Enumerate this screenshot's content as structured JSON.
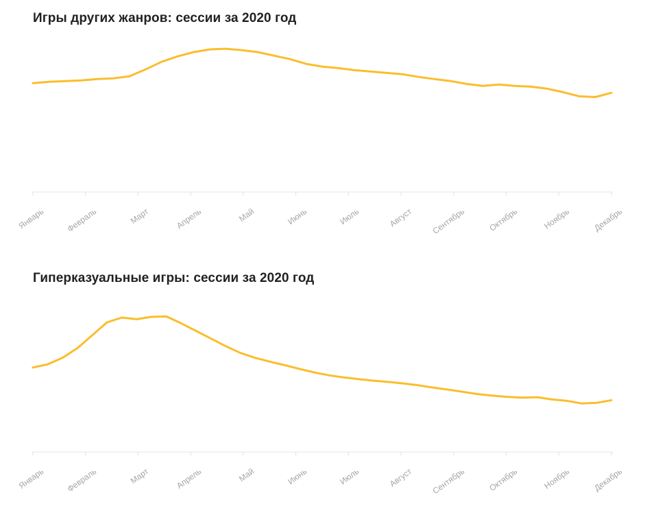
{
  "colors": {
    "line": "#FBBD2C",
    "axis": "#E6E6E6",
    "tick": "#E0E0E0",
    "labels": "#A6A6A6",
    "title": "#212121"
  },
  "chart_data": [
    {
      "type": "line",
      "title": "Игры других жанров: сессии за 2020 год",
      "categories": [
        "Январь",
        "Февраль",
        "Март",
        "Апрель",
        "Май",
        "Июнь",
        "Июль",
        "Август",
        "Сентябрь",
        "Октябрь",
        "Ноябрь",
        "Декабрь"
      ],
      "values": [
        71.5,
        72.4,
        72.9,
        73.3,
        74.2,
        74.7,
        76.0,
        80.5,
        85.5,
        89.1,
        91.9,
        93.7,
        94.1,
        93.2,
        91.9,
        89.6,
        87.3,
        84.2,
        82.4,
        81.4,
        80.1,
        79.2,
        78.3,
        77.4,
        75.6,
        74.2,
        72.9,
        71.0,
        69.7,
        70.6,
        69.7,
        69.2,
        67.9,
        65.6,
        62.9,
        62.4,
        65.2
      ],
      "xlabel": "",
      "ylabel": "",
      "ylim": [
        0,
        100
      ],
      "grid": false,
      "legend": "none"
    },
    {
      "type": "line",
      "title": "Гиперказуальные игры: сессии за 2020 год",
      "categories": [
        "Январь",
        "Февраль",
        "Март",
        "Апрель",
        "Май",
        "Июнь",
        "Июль",
        "Август",
        "Сентябрь",
        "Октябрь",
        "Ноябрь",
        "Декабрь"
      ],
      "values": [
        55.5,
        57.6,
        61.9,
        68.2,
        76.7,
        85.2,
        88.3,
        87.2,
        88.8,
        89.0,
        84.5,
        79.5,
        74.5,
        69.5,
        65.0,
        61.8,
        59.3,
        57.0,
        54.5,
        52.2,
        50.3,
        48.9,
        47.8,
        46.8,
        46.0,
        45.0,
        43.8,
        42.3,
        41.0,
        39.5,
        38.0,
        37.0,
        36.2,
        35.7,
        36.0,
        34.5,
        33.6,
        31.9,
        32.3,
        34.0
      ],
      "xlabel": "",
      "ylabel": "",
      "ylim": [
        0,
        100
      ],
      "grid": false,
      "legend": "none"
    }
  ]
}
